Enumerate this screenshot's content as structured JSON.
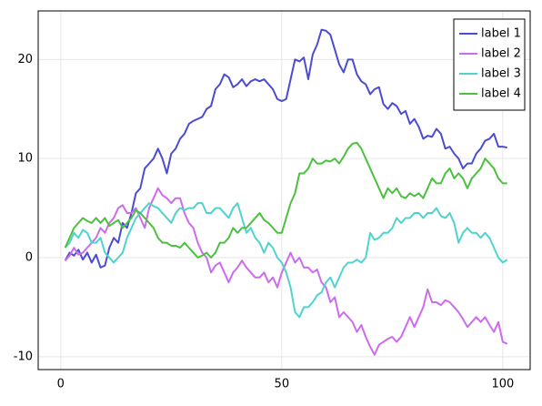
{
  "chart_data": {
    "type": "line",
    "x": [
      1,
      2,
      3,
      4,
      5,
      6,
      7,
      8,
      9,
      10,
      11,
      12,
      13,
      14,
      15,
      16,
      17,
      18,
      19,
      20,
      21,
      22,
      23,
      24,
      25,
      26,
      27,
      28,
      29,
      30,
      31,
      32,
      33,
      34,
      35,
      36,
      37,
      38,
      39,
      40,
      41,
      42,
      43,
      44,
      45,
      46,
      47,
      48,
      49,
      50,
      51,
      52,
      53,
      54,
      55,
      56,
      57,
      58,
      59,
      60,
      61,
      62,
      63,
      64,
      65,
      66,
      67,
      68,
      69,
      70,
      71,
      72,
      73,
      74,
      75,
      76,
      77,
      78,
      79,
      80,
      81,
      82,
      83,
      84,
      85,
      86,
      87,
      88,
      89,
      90,
      91,
      92,
      93,
      94,
      95,
      96,
      97,
      98,
      99,
      100,
      101
    ],
    "series": [
      {
        "name": "label 1",
        "color": "#4c4cd2",
        "values": [
          -0.3,
          0.5,
          0.2,
          0.8,
          -0.2,
          0.5,
          -0.5,
          0.3,
          -1,
          -0.8,
          1,
          2,
          1.5,
          3.5,
          3,
          4.5,
          6.5,
          7,
          9,
          9.5,
          10,
          11,
          10,
          8.5,
          10.5,
          11,
          12,
          12.5,
          13.5,
          13.8,
          14,
          14.2,
          15,
          15.3,
          17,
          17.5,
          18.5,
          18.2,
          17.2,
          17.5,
          18,
          17.3,
          17.8,
          18,
          17.8,
          18,
          17.5,
          17,
          16,
          15.8,
          16,
          18,
          20,
          19.8,
          20.2,
          18,
          20.5,
          21.5,
          23,
          22.9,
          22.5,
          21,
          19.5,
          18.7,
          20,
          20,
          18.5,
          17.8,
          17.5,
          16.5,
          17,
          17.2,
          15.5,
          15,
          15.6,
          15.3,
          14.5,
          14.8,
          13.5,
          14,
          13.2,
          12,
          12.3,
          12.2,
          13,
          12.5,
          11,
          11.2,
          10.5,
          10,
          9,
          9.5,
          9.5,
          10.5,
          11,
          11.8,
          12,
          12.5,
          11.2,
          11.2,
          11.1
        ]
      },
      {
        "name": "label 2",
        "color": "#cc6ced",
        "values": [
          -0.3,
          0.2,
          1,
          0.3,
          0.5,
          1,
          1.5,
          2,
          3,
          2.5,
          3.5,
          4,
          5,
          5.3,
          4.5,
          4.5,
          5,
          4,
          3,
          5,
          6,
          7,
          6.3,
          6,
          5.5,
          6,
          6,
          4.5,
          3.5,
          3,
          1.5,
          0.5,
          0,
          -1.5,
          -0.8,
          -0.5,
          -1.5,
          -2.5,
          -1.5,
          -1,
          -0.3,
          -1,
          -1.5,
          -2,
          -2,
          -1.5,
          -2.5,
          -2,
          -3,
          -1.5,
          -0.5,
          0.5,
          -0.5,
          0,
          -1,
          -1,
          -1.5,
          -1.2,
          -2.5,
          -3,
          -4.5,
          -4,
          -6,
          -5.5,
          -6,
          -6.5,
          -7.5,
          -6.8,
          -8,
          -9,
          -9.8,
          -8.8,
          -8.5,
          -8.2,
          -8,
          -8.5,
          -8,
          -7,
          -6,
          -7,
          -6,
          -5,
          -3.2,
          -4.5,
          -4.5,
          -4.8,
          -4.3,
          -4.5,
          -5,
          -5.5,
          -6.2,
          -7,
          -6.5,
          -6,
          -6.5,
          -6,
          -6.8,
          -7.5,
          -6.5,
          -8.5,
          -8.7
        ]
      },
      {
        "name": "label 3",
        "color": "#4fd3ce",
        "values": [
          1,
          1.5,
          2.5,
          2,
          2.8,
          2.5,
          1.5,
          1.5,
          2,
          0.5,
          0,
          -0.5,
          0,
          0.5,
          2,
          3,
          4,
          4.5,
          5,
          5.5,
          5.2,
          5,
          4.5,
          4,
          3.5,
          4.5,
          5,
          4.8,
          5,
          5,
          5.5,
          5.5,
          4.5,
          4.5,
          5,
          5,
          4.5,
          4,
          5,
          5.5,
          4,
          2.5,
          3,
          2,
          1.5,
          0.5,
          1.5,
          1,
          0,
          -0.5,
          -1.5,
          -3,
          -5.5,
          -6,
          -5,
          -5,
          -4.5,
          -3.8,
          -3.5,
          -2.5,
          -2,
          -3,
          -2,
          -1,
          -0.5,
          -0.5,
          -0.2,
          -0.5,
          0,
          2.5,
          1.8,
          2,
          2.5,
          2.5,
          3,
          4,
          3.5,
          4,
          4,
          4.5,
          4.5,
          4,
          4.5,
          4.5,
          5,
          4.2,
          4,
          4.5,
          3.5,
          1.5,
          2.5,
          3,
          2.5,
          2.5,
          2,
          2.5,
          2,
          1,
          0,
          -0.5,
          -0.2
        ]
      },
      {
        "name": "label 4",
        "color": "#4dc03f",
        "values": [
          1,
          2,
          3,
          3.5,
          4,
          3.7,
          3.5,
          4,
          3.5,
          4,
          3.2,
          3.5,
          3.8,
          3,
          3.5,
          4,
          4.8,
          4.5,
          4,
          3.5,
          3,
          2,
          1.5,
          1.5,
          1.2,
          1.2,
          1,
          1.5,
          1,
          0.5,
          0,
          0.2,
          0.5,
          0,
          0.5,
          1.5,
          1.5,
          2,
          3,
          2.5,
          3,
          3,
          3.5,
          4,
          4.5,
          3.8,
          3.5,
          3,
          2.5,
          2.5,
          4,
          5.5,
          6.5,
          8.5,
          8.5,
          9,
          10,
          9.5,
          9.5,
          9.8,
          9.7,
          10,
          9.5,
          10.2,
          11,
          11.5,
          11.6,
          11,
          10,
          9,
          8,
          7,
          6,
          7,
          6.5,
          7,
          6.2,
          6,
          6.5,
          6.2,
          6.5,
          6,
          7,
          8,
          7.5,
          7.5,
          8.5,
          9,
          8,
          8.5,
          8,
          7,
          8,
          8.5,
          9,
          10,
          9.5,
          9,
          8,
          7.5,
          7.5
        ]
      }
    ],
    "xlim": [
      -5.1,
      106.2
    ],
    "ylim": [
      -11.3,
      24.9
    ],
    "xticks": [
      0,
      50,
      100
    ],
    "yticks": [
      -10,
      0,
      10,
      20
    ],
    "grid": true,
    "legend": "top-right"
  }
}
